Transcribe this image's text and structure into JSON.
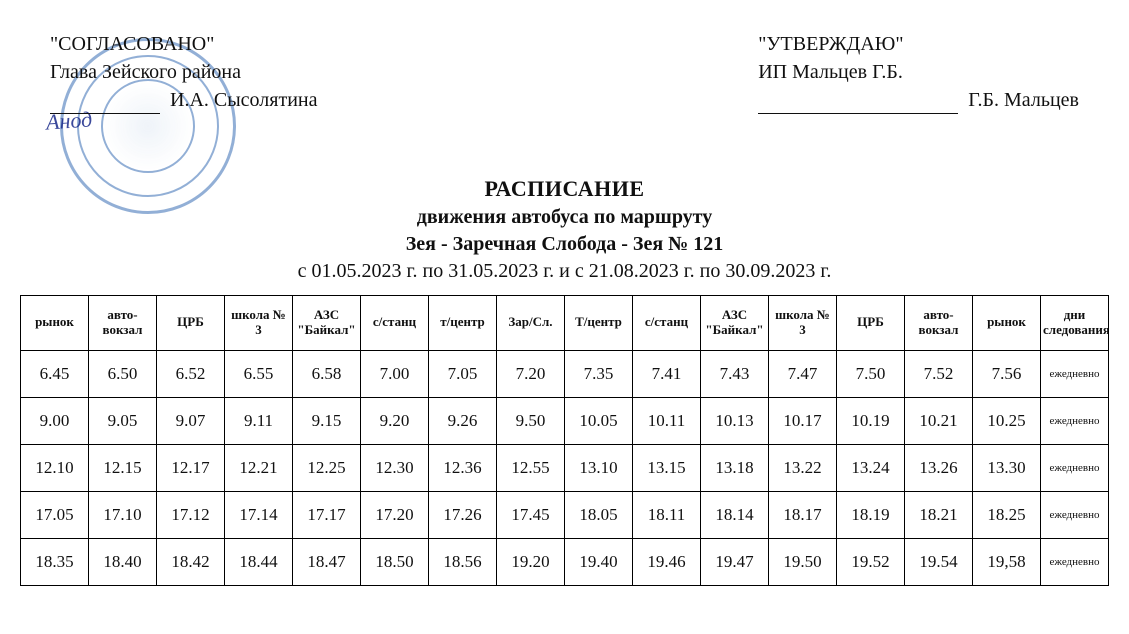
{
  "approval_left": {
    "line1": "\"СОГЛАСОВАНО\"",
    "line2": "Глава Зейского района",
    "signer": "И.А. Сысолятина"
  },
  "approval_right": {
    "line1": "\"УТВЕРЖДАЮ\"",
    "line2": "ИП Мальцев Г.Б.",
    "signer": "Г.Б. Мальцев"
  },
  "title": {
    "line1": "РАСПИСАНИЕ",
    "line2": "движения автобуса по маршруту",
    "line3": "Зея - Заречная Слобода - Зея № 121",
    "dates": "с 01.05.2023 г. по 31.05.2023 г. и с 21.08.2023 г. по 30.09.2023 г."
  },
  "table": {
    "columns": [
      "рынок",
      "авто-\nвокзал",
      "ЦРБ",
      "школа №\n3",
      "АЗС\n\"Байкал\"",
      "с/станц",
      "т/центр",
      "Зар/Сл.",
      "Т/центр",
      "с/станц",
      "АЗС\n\"Байкал\"",
      "школа №\n3",
      "ЦРБ",
      "авто-\nвокзал",
      "рынок",
      "дни\nследования"
    ],
    "rows": [
      [
        "6.45",
        "6.50",
        "6.52",
        "6.55",
        "6.58",
        "7.00",
        "7.05",
        "7.20",
        "7.35",
        "7.41",
        "7.43",
        "7.47",
        "7.50",
        "7.52",
        "7.56",
        "ежедневно"
      ],
      [
        "9.00",
        "9.05",
        "9.07",
        "9.11",
        "9.15",
        "9.20",
        "9.26",
        "9.50",
        "10.05",
        "10.11",
        "10.13",
        "10.17",
        "10.19",
        "10.21",
        "10.25",
        "ежедневно"
      ],
      [
        "12.10",
        "12.15",
        "12.17",
        "12.21",
        "12.25",
        "12.30",
        "12.36",
        "12.55",
        "13.10",
        "13.15",
        "13.18",
        "13.22",
        "13.24",
        "13.26",
        "13.30",
        "ежедневно"
      ],
      [
        "17.05",
        "17.10",
        "17.12",
        "17.14",
        "17.17",
        "17.20",
        "17.26",
        "17.45",
        "18.05",
        "18.11",
        "18.14",
        "18.17",
        "18.19",
        "18.21",
        "18.25",
        "ежедневно"
      ],
      [
        "18.35",
        "18.40",
        "18.42",
        "18.44",
        "18.47",
        "18.50",
        "18.56",
        "19.20",
        "19.40",
        "19.46",
        "19.47",
        "19.50",
        "19.52",
        "19.54",
        "19,58",
        "ежедневно"
      ]
    ],
    "col_count": 16,
    "header_fontsize": 13,
    "cell_fontsize": 17,
    "border_color": "#000000",
    "background_color": "#ffffff"
  },
  "stamp_color": "#3a6fb5"
}
